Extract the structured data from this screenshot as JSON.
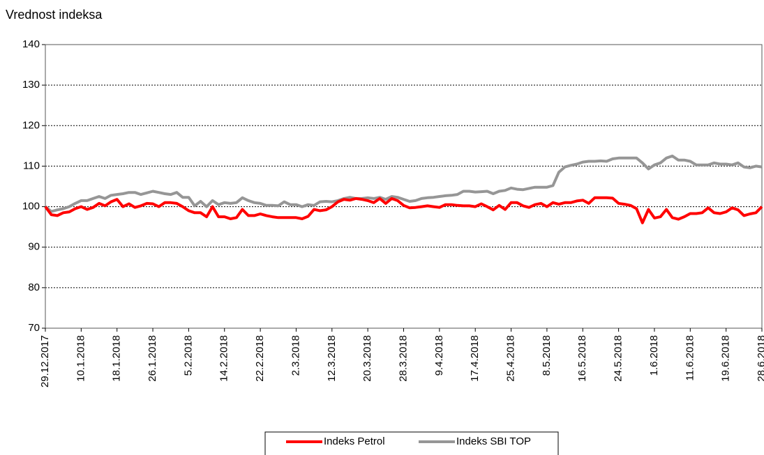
{
  "chart_data": {
    "type": "line",
    "title": "Vrednost indeksa",
    "categories": [
      "29.12.2017",
      null,
      null,
      null,
      null,
      null,
      "10.1.2018",
      null,
      null,
      null,
      null,
      null,
      "18.1.2018",
      null,
      null,
      null,
      null,
      null,
      "26.1.2018",
      null,
      null,
      null,
      null,
      null,
      "5.2.2018",
      null,
      null,
      null,
      null,
      null,
      "14.2.2018",
      null,
      null,
      null,
      null,
      null,
      "22.2.2018",
      null,
      null,
      null,
      null,
      null,
      "2.3.2018",
      null,
      null,
      null,
      null,
      null,
      "12.3.2018",
      null,
      null,
      null,
      null,
      null,
      "20.3.2018",
      null,
      null,
      null,
      null,
      null,
      "28.3.2018",
      null,
      null,
      null,
      null,
      null,
      "9.4.2018",
      null,
      null,
      null,
      null,
      null,
      "17.4.2018",
      null,
      null,
      null,
      null,
      null,
      "25.4.2018",
      null,
      null,
      null,
      null,
      null,
      "8.5.2018",
      null,
      null,
      null,
      null,
      null,
      "16.5.2018",
      null,
      null,
      null,
      null,
      null,
      "24.5.2018",
      null,
      null,
      null,
      null,
      null,
      "1.6.2018",
      null,
      null,
      null,
      null,
      null,
      "11.6.2018",
      null,
      null,
      null,
      null,
      null,
      "19.6.2018",
      null,
      null,
      null,
      null,
      null,
      "28.6.2018"
    ],
    "series": [
      {
        "name": "Indeks Petrol",
        "color": "#ff0000",
        "values": [
          100,
          98,
          97.8,
          98.5,
          98.7,
          99.5,
          100,
          99.3,
          99.8,
          100.8,
          100.2,
          101.2,
          101.8,
          100,
          100.7,
          99.8,
          100.2,
          100.8,
          100.7,
          100,
          101,
          101,
          100.8,
          100,
          99,
          98.5,
          98.5,
          97.5,
          100,
          97.5,
          97.5,
          97,
          97.3,
          99.3,
          97.8,
          97.8,
          98.2,
          97.8,
          97.5,
          97.3,
          97.3,
          97.3,
          97.3,
          97,
          97.6,
          99.3,
          99,
          99.2,
          100,
          101.2,
          101.8,
          101.6,
          102,
          101.8,
          101.5,
          101,
          102,
          100.8,
          102,
          101.5,
          100.3,
          99.7,
          99.8,
          100,
          100.2,
          100,
          99.8,
          100.5,
          100.5,
          100.3,
          100.2,
          100.2,
          100,
          100.7,
          100,
          99.2,
          100.3,
          99.3,
          101,
          101,
          100.2,
          99.8,
          100.5,
          100.8,
          100,
          101,
          100.6,
          101,
          101,
          101.4,
          101.6,
          100.8,
          102.2,
          102.2,
          102.2,
          102.1,
          100.8,
          100.6,
          100.3,
          99.5,
          96,
          99.3,
          97.2,
          97.5,
          99.3,
          97.3,
          96.9,
          97.5,
          98.3,
          98.3,
          98.5,
          99.7,
          98.5,
          98.3,
          98.7,
          99.7,
          99.2,
          97.8,
          98.2,
          98.5,
          100
        ]
      },
      {
        "name": "Indeks SBI TOP",
        "color": "#969696",
        "values": [
          100,
          98.8,
          99.2,
          99.5,
          100,
          100.8,
          101.5,
          101.5,
          102,
          102.5,
          102,
          102.8,
          103,
          103.2,
          103.5,
          103.5,
          103,
          103.4,
          103.8,
          103.5,
          103.2,
          103,
          103.5,
          102.3,
          102.3,
          100.2,
          101.3,
          100,
          101.5,
          100.5,
          101,
          100.8,
          101,
          102.2,
          101.5,
          101,
          100.8,
          100.3,
          100.3,
          100.2,
          101.2,
          100.5,
          100.5,
          100,
          100.5,
          100.3,
          101.2,
          101.3,
          101.2,
          101.5,
          102,
          102.3,
          102,
          102,
          102.2,
          102,
          102.3,
          101.8,
          102.5,
          102.3,
          101.8,
          101.3,
          101.5,
          102,
          102.2,
          102.3,
          102.5,
          102.7,
          102.8,
          103,
          103.8,
          103.8,
          103.6,
          103.7,
          103.8,
          103.2,
          103.8,
          104,
          104.6,
          104.3,
          104.2,
          104.5,
          104.8,
          104.8,
          104.8,
          105.2,
          108.5,
          109.8,
          110.2,
          110.5,
          111,
          111.2,
          111.2,
          111.3,
          111.2,
          111.8,
          112,
          112,
          112,
          112,
          110.8,
          109.3,
          110.3,
          110.8,
          112,
          112.5,
          111.5,
          111.5,
          111.2,
          110.3,
          110.3,
          110.3,
          110.8,
          110.5,
          110.5,
          110.3,
          110.8,
          109.8,
          109.6,
          110,
          109.8
        ]
      }
    ],
    "ylim": [
      70,
      140
    ],
    "yticks": [
      70,
      80,
      90,
      100,
      110,
      120,
      130,
      140
    ],
    "grid": true
  }
}
